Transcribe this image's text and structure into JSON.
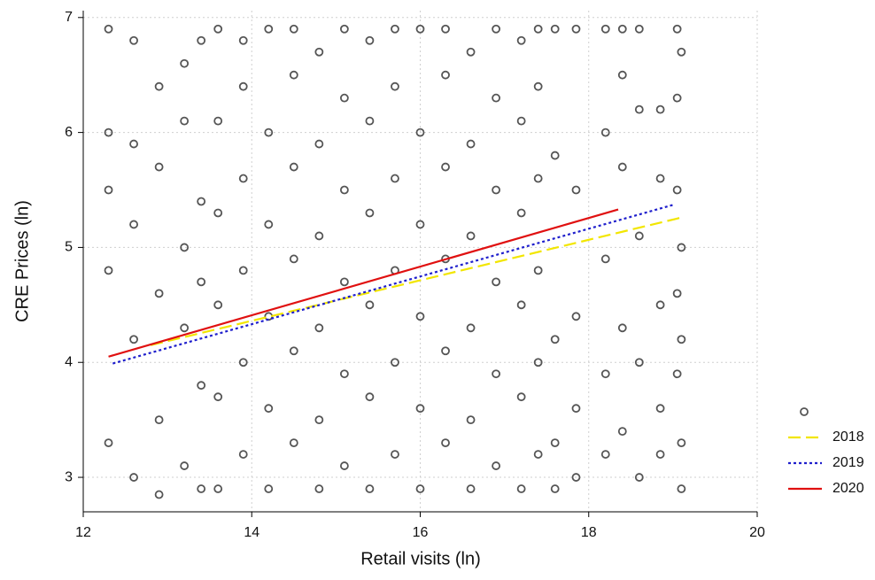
{
  "chart_data": {
    "type": "scatter",
    "xlabel": "Retail visits (ln)",
    "ylabel": "CRE Prices (ln)",
    "xlim": [
      12,
      20
    ],
    "ylim": [
      2.7,
      7.06
    ],
    "xticks": [
      12,
      14,
      16,
      18,
      20
    ],
    "yticks": [
      3,
      4,
      5,
      6,
      7
    ],
    "grid": true,
    "legend": "lower right",
    "series": [
      {
        "type": "scatter",
        "color": "#555555",
        "x": [
          13.6,
          13.6,
          13.6,
          13.6,
          13.6,
          13.6,
          13.9,
          13.9,
          13.9,
          13.9,
          13.9,
          13.9,
          14.2,
          14.2,
          14.2,
          14.2,
          14.2,
          14.2,
          14.5,
          14.5,
          14.5,
          14.5,
          14.5,
          14.5,
          14.8,
          14.8,
          14.8,
          14.8,
          14.8,
          14.8,
          15.1,
          15.1,
          15.1,
          15.1,
          15.1,
          15.1,
          15.4,
          15.4,
          15.4,
          15.4,
          15.4,
          15.4,
          15.7,
          15.7,
          15.7,
          15.7,
          15.7,
          15.7,
          16.0,
          16.0,
          16.0,
          16.0,
          16.0,
          16.0,
          16.3,
          16.3,
          16.3,
          16.3,
          16.3,
          16.3,
          16.6,
          16.6,
          16.6,
          16.6,
          16.6,
          16.6,
          16.9,
          16.9,
          16.9,
          16.9,
          16.9,
          16.9,
          17.2,
          17.2,
          17.2,
          17.2,
          17.2,
          17.2,
          17.4,
          17.4,
          17.4,
          17.4,
          17.4,
          17.4,
          12.3,
          12.3,
          12.3,
          12.3,
          12.3,
          12.6,
          12.6,
          12.6,
          12.6,
          12.6,
          12.9,
          12.9,
          12.9,
          12.9,
          12.9,
          13.2,
          13.2,
          13.2,
          13.2,
          13.2,
          13.4,
          13.4,
          13.4,
          13.4,
          13.4,
          17.6,
          17.6,
          17.6,
          17.6,
          17.6,
          17.85,
          17.85,
          17.85,
          17.85,
          17.85,
          18.2,
          18.2,
          18.2,
          18.2,
          18.2,
          18.4,
          18.4,
          18.4,
          18.4,
          18.4,
          18.6,
          18.6,
          18.6,
          18.6,
          18.6,
          18.85,
          18.85,
          18.85,
          18.85,
          18.85,
          19.05,
          19.05,
          19.05,
          19.05,
          19.05,
          19.1,
          19.1,
          19.1,
          19.1,
          19.1
        ],
        "values": [
          2.9,
          3.7,
          4.5,
          5.3,
          6.1,
          6.9,
          3.2,
          4.0,
          4.8,
          5.6,
          6.4,
          6.8,
          2.9,
          3.6,
          4.4,
          5.2,
          6.0,
          6.9,
          3.3,
          4.1,
          4.9,
          5.7,
          6.5,
          6.9,
          2.9,
          3.5,
          4.3,
          5.1,
          5.9,
          6.7,
          3.1,
          3.9,
          4.7,
          5.5,
          6.3,
          6.9,
          2.9,
          3.7,
          4.5,
          5.3,
          6.1,
          6.8,
          3.2,
          4.0,
          4.8,
          5.6,
          6.4,
          6.9,
          2.9,
          3.6,
          4.4,
          5.2,
          6.0,
          6.9,
          3.3,
          4.1,
          4.9,
          5.7,
          6.5,
          6.9,
          2.9,
          3.5,
          4.3,
          5.1,
          5.9,
          6.7,
          3.1,
          3.9,
          4.7,
          5.5,
          6.3,
          6.9,
          2.9,
          3.7,
          4.5,
          5.3,
          6.1,
          6.8,
          3.2,
          4.0,
          4.8,
          5.6,
          6.4,
          6.9,
          6.9,
          5.5,
          4.8,
          3.3,
          6.0,
          6.8,
          5.2,
          4.2,
          3.0,
          5.9,
          6.4,
          5.7,
          4.6,
          3.5,
          2.85,
          6.6,
          5.0,
          4.3,
          3.1,
          6.1,
          6.8,
          5.4,
          3.8,
          2.9,
          4.7,
          6.9,
          5.8,
          4.2,
          3.3,
          2.9,
          6.9,
          5.5,
          4.4,
          3.6,
          3.0,
          6.9,
          6.0,
          4.9,
          3.9,
          3.2,
          6.9,
          5.7,
          4.3,
          3.4,
          6.5,
          6.9,
          5.1,
          4.0,
          3.0,
          6.2,
          6.2,
          5.6,
          4.5,
          3.6,
          3.2,
          6.9,
          6.3,
          5.5,
          4.6,
          3.9,
          3.3,
          2.9,
          5.0,
          6.7,
          4.2
        ]
      },
      {
        "type": "line",
        "name": "2018",
        "color": "#f2e600",
        "dash": "dashed",
        "x": [
          12.8,
          19.1
        ],
        "values": [
          4.15,
          5.26
        ]
      },
      {
        "type": "line",
        "name": "2019",
        "color": "#1f1fcc",
        "dash": "dotted",
        "x": [
          12.35,
          19.0
        ],
        "values": [
          3.99,
          5.37
        ]
      },
      {
        "type": "line",
        "name": "2020",
        "color": "#e01010",
        "dash": "solid",
        "x": [
          12.3,
          18.35
        ],
        "values": [
          4.05,
          5.33
        ]
      }
    ]
  }
}
